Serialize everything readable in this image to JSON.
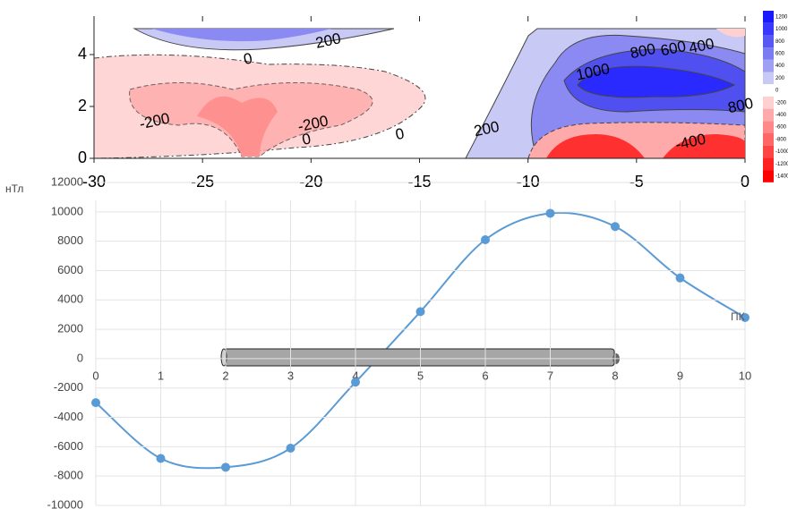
{
  "chart_data": [
    {
      "type": "contour",
      "xlim": [
        -30,
        0
      ],
      "xticks": [
        -30,
        -25,
        -20,
        -15,
        -10,
        -5,
        0
      ],
      "ylim": [
        0,
        5
      ],
      "yticks": [
        0,
        2,
        4
      ],
      "annotations": [
        {
          "text": "200",
          "x": -19.2,
          "y": 4.5
        },
        {
          "text": "0",
          "x": -22.9,
          "y": 3.8
        },
        {
          "text": "-200",
          "x": -27.2,
          "y": 1.4
        },
        {
          "text": "-200",
          "x": -19.9,
          "y": 1.3
        },
        {
          "text": "0",
          "x": -20.2,
          "y": 0.7
        },
        {
          "text": "0",
          "x": -15.9,
          "y": 0.9
        },
        {
          "text": "200",
          "x": -11.9,
          "y": 1.1
        },
        {
          "text": "1000",
          "x": -7,
          "y": 3.3
        },
        {
          "text": "800",
          "x": -4.7,
          "y": 4.1
        },
        {
          "text": "600",
          "x": -3.3,
          "y": 4.2
        },
        {
          "text": "400",
          "x": -2,
          "y": 4.3
        },
        {
          "text": "800",
          "x": -0.2,
          "y": 2
        },
        {
          "text": "-400",
          "x": -2.5,
          "y": 0.6
        }
      ],
      "colorbar": {
        "levels": [
          1200,
          1000,
          800,
          600,
          400,
          200,
          0,
          -200,
          -400,
          -600,
          -800,
          -1000,
          -1200,
          -1400
        ],
        "colors": [
          "#1a1aff",
          "#3838ff",
          "#5858f5",
          "#7b7bf2",
          "#a0a0f2",
          "#c9c9f5",
          "#ffffff",
          "#ffd0d0",
          "#ffaaaa",
          "#ff8888",
          "#ff6666",
          "#ff4444",
          "#ff2222",
          "#ff0000"
        ]
      }
    },
    {
      "type": "line",
      "ylabel": "нТл",
      "annotation": "ПК",
      "x": [
        0,
        1,
        2,
        3,
        4,
        5,
        6,
        7,
        8,
        9,
        10
      ],
      "values": [
        -3000,
        -6800,
        -7400,
        -6100,
        -1600,
        3200,
        8100,
        9900,
        9000,
        5500,
        2800
      ],
      "color": "#5b9bd5",
      "xlim": [
        0,
        10
      ],
      "xticks": [
        0,
        1,
        2,
        3,
        4,
        5,
        6,
        7,
        8,
        9,
        10
      ],
      "ylim": [
        -10000,
        12000
      ],
      "yticks": [
        -10000,
        -8000,
        -6000,
        -4000,
        -2000,
        0,
        2000,
        4000,
        6000,
        8000,
        10000,
        12000
      ],
      "grid": true
    }
  ]
}
